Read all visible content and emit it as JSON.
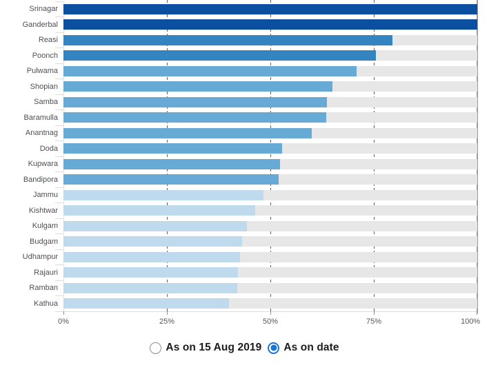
{
  "chart_data": {
    "type": "bar",
    "orientation": "horizontal",
    "title": "",
    "xlabel": "",
    "ylabel": "",
    "xlim": [
      0,
      100
    ],
    "grid": "dashed-vertical",
    "categories": [
      "Srinagar",
      "Ganderbal",
      "Reasi",
      "Poonch",
      "Pulwama",
      "Shopian",
      "Samba",
      "Baramulla",
      "Anantnag",
      "Doda",
      "Kupwara",
      "Bandipora",
      "Jammu",
      "Kishtwar",
      "Kulgam",
      "Budgam",
      "Udhampur",
      "Rajauri",
      "Ramban",
      "Kathua"
    ],
    "values": [
      100,
      100,
      79.5,
      75.5,
      70.8,
      65,
      63.7,
      63.5,
      60,
      52.8,
      52.4,
      52,
      48.3,
      46.3,
      44.3,
      43.2,
      42.7,
      42.2,
      42,
      40
    ],
    "bar_colors": [
      "#0b4fa1",
      "#0b4fa1",
      "#3484c2",
      "#3484c2",
      "#68aad6",
      "#68aad6",
      "#68aad6",
      "#68aad6",
      "#68aad6",
      "#68aad6",
      "#68aad6",
      "#68aad6",
      "#bfd9ed",
      "#bfd9ed",
      "#bfd9ed",
      "#bfd9ed",
      "#bfd9ed",
      "#bfd9ed",
      "#bfd9ed",
      "#bfd9ed"
    ],
    "track_color": "#e7e7e7",
    "x_ticks": [
      {
        "label": "0%",
        "value": 0
      },
      {
        "label": "25%",
        "value": 25
      },
      {
        "label": "50%",
        "value": 50
      },
      {
        "label": "75%",
        "value": 75
      },
      {
        "label": "100%",
        "value": 100
      }
    ],
    "legend_position": "bottom-center"
  },
  "legend": {
    "options": [
      {
        "label": "As on 15 Aug 2019",
        "selected": false
      },
      {
        "label": "As on date",
        "selected": true
      }
    ],
    "accent_color": "#1a73d9",
    "unselected_ring_color": "#8a8d90"
  }
}
